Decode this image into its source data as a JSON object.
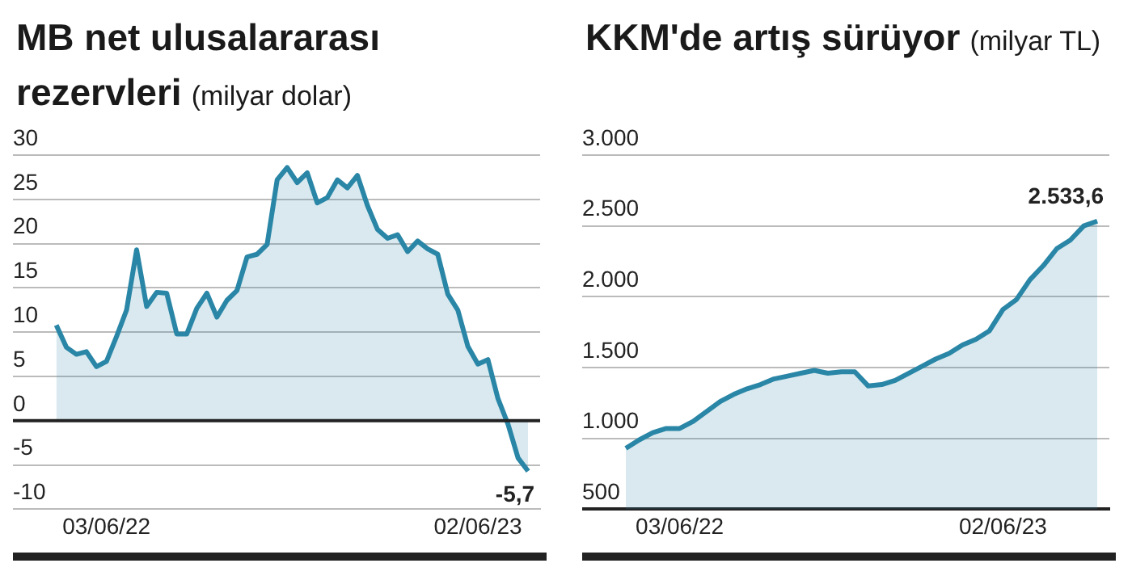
{
  "chart_data": [
    {
      "type": "area",
      "title": "MB net ulusalararası rezervleri",
      "subtitle": "(milyar dolar)",
      "categories": [
        null,
        null,
        null,
        null,
        null,
        "03/06/22",
        null,
        null,
        null,
        null,
        null,
        null,
        null,
        null,
        null,
        null,
        null,
        null,
        null,
        null,
        null,
        null,
        null,
        null,
        null,
        null,
        null,
        null,
        null,
        null,
        null,
        null,
        null,
        null,
        null,
        null,
        null,
        null,
        null,
        null,
        null,
        null,
        "02/06/23",
        null,
        null,
        null,
        null,
        null
      ],
      "series": [
        {
          "color": "#2a86a6",
          "values": [
            10.8,
            8.3,
            7.5,
            7.8,
            6.1,
            6.7,
            9.5,
            12.5,
            19.3,
            12.9,
            14.5,
            14.4,
            9.8,
            9.8,
            12.7,
            14.4,
            11.7,
            13.6,
            14.7,
            18.5,
            18.8,
            19.9,
            27.2,
            28.6,
            26.9,
            28.0,
            24.6,
            25.2,
            27.2,
            26.3,
            27.7,
            24.3,
            21.6,
            20.6,
            21.0,
            19.1,
            20.3,
            19.4,
            18.8,
            14.3,
            12.5,
            8.4,
            6.4,
            6.9,
            2.5,
            -0.4,
            -4.2,
            -5.7
          ],
          "value_labels": [
            null,
            null,
            null,
            null,
            null,
            null,
            null,
            null,
            null,
            null,
            null,
            null,
            null,
            null,
            null,
            null,
            null,
            null,
            null,
            null,
            null,
            null,
            null,
            null,
            null,
            null,
            null,
            null,
            null,
            null,
            null,
            null,
            null,
            null,
            null,
            null,
            null,
            null,
            null,
            null,
            null,
            null,
            null,
            null,
            null,
            null,
            null,
            "-5,7"
          ]
        }
      ],
      "ylim": [
        -10,
        30
      ],
      "yticks": [
        -10,
        -5,
        0,
        5,
        10,
        15,
        20,
        25,
        30
      ],
      "grid": "y",
      "legend": false,
      "marker": "none",
      "ref_lines": [
        {
          "axis": "y",
          "value": 0,
          "color": "#222222"
        }
      ]
    },
    {
      "type": "area",
      "title": "KKM'de artış sürüyor",
      "subtitle": "(milyar TL)",
      "categories": [
        null,
        null,
        null,
        null,
        "03/06/22",
        null,
        null,
        null,
        null,
        null,
        null,
        null,
        null,
        null,
        null,
        null,
        null,
        null,
        null,
        null,
        null,
        null,
        null,
        null,
        null,
        null,
        null,
        null,
        "02/06/23",
        null,
        null,
        null,
        null,
        null,
        null,
        null
      ],
      "series": [
        {
          "color": "#2a86a6",
          "values": [
            930,
            990,
            1040,
            1070,
            1070,
            1120,
            1190,
            1260,
            1310,
            1350,
            1380,
            1420,
            1440,
            1460,
            1480,
            1460,
            1470,
            1470,
            1370,
            1380,
            1410,
            1460,
            1510,
            1560,
            1600,
            1660,
            1700,
            1760,
            1910,
            1980,
            2120,
            2220,
            2340,
            2400,
            2500,
            2533.6
          ],
          "value_labels": [
            null,
            null,
            null,
            null,
            null,
            null,
            null,
            null,
            null,
            null,
            null,
            null,
            null,
            null,
            null,
            null,
            null,
            null,
            null,
            null,
            null,
            null,
            null,
            null,
            null,
            null,
            null,
            null,
            null,
            null,
            null,
            null,
            null,
            null,
            null,
            "2.533,6"
          ]
        }
      ],
      "ylim": [
        500,
        3000
      ],
      "yticks": [
        500,
        {
          "value": 1000,
          "label": "1.000"
        },
        {
          "value": 1500,
          "label": "1.500"
        },
        {
          "value": 2000,
          "label": "2.000"
        },
        {
          "value": 2500,
          "label": "2.500"
        },
        {
          "value": 3000,
          "label": "3.000"
        }
      ],
      "grid": "y",
      "legend": false,
      "marker": "none"
    }
  ]
}
